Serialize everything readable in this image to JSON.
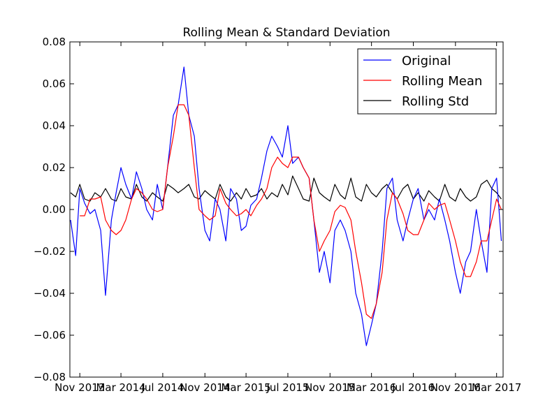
{
  "chart_data": {
    "type": "line",
    "title": "Rolling Mean & Standard Deviation",
    "xlabel": "",
    "ylabel": "",
    "x_range": [
      "2013-10-03",
      "2017-03-20"
    ],
    "ylim": [
      -0.08,
      0.08
    ],
    "yticks": [
      0.08,
      0.06,
      0.04,
      0.02,
      0.0,
      -0.02,
      -0.04,
      -0.06,
      -0.08
    ],
    "ytick_labels": [
      "0.08",
      "0.06",
      "0.04",
      "0.02",
      "0.00",
      "−0.02",
      "−0.04",
      "−0.06",
      "−0.08"
    ],
    "xticks": [
      "2013-11-01",
      "2014-03-01",
      "2014-07-01",
      "2014-11-01",
      "2015-03-01",
      "2015-07-01",
      "2015-11-01",
      "2016-03-01",
      "2016-07-01",
      "2016-11-01",
      "2017-03-01"
    ],
    "xtick_labels": [
      "Nov 2013",
      "Mar 2014",
      "Jul 2014",
      "Nov 2014",
      "Mar 2015",
      "Jul 2015",
      "Nov 2015",
      "Mar 2016",
      "Jul 2016",
      "Nov 2016",
      "Mar 2017"
    ],
    "legend_position": "top-right",
    "grid": false,
    "series": [
      {
        "name": "Original",
        "color": "#0000ff",
        "x": [
          "2013-10-05",
          "2013-10-20",
          "2013-11-01",
          "2013-11-15",
          "2013-12-01",
          "2013-12-15",
          "2014-01-01",
          "2014-01-15",
          "2014-02-01",
          "2014-02-15",
          "2014-03-01",
          "2014-03-15",
          "2014-04-01",
          "2014-04-15",
          "2014-05-01",
          "2014-05-15",
          "2014-06-01",
          "2014-06-15",
          "2014-07-01",
          "2014-07-15",
          "2014-08-01",
          "2014-08-15",
          "2014-09-01",
          "2014-09-15",
          "2014-10-01",
          "2014-10-15",
          "2014-11-01",
          "2014-11-15",
          "2014-12-01",
          "2014-12-15",
          "2015-01-01",
          "2015-01-15",
          "2015-02-01",
          "2015-02-15",
          "2015-03-01",
          "2015-03-15",
          "2015-04-01",
          "2015-04-15",
          "2015-05-01",
          "2015-05-15",
          "2015-06-01",
          "2015-06-15",
          "2015-07-01",
          "2015-07-15",
          "2015-08-01",
          "2015-08-15",
          "2015-09-01",
          "2015-09-15",
          "2015-10-01",
          "2015-10-15",
          "2015-11-01",
          "2015-11-15",
          "2015-12-01",
          "2015-12-15",
          "2016-01-01",
          "2016-01-15",
          "2016-02-01",
          "2016-02-15",
          "2016-03-01",
          "2016-03-15",
          "2016-04-01",
          "2016-04-15",
          "2016-05-01",
          "2016-05-15",
          "2016-06-01",
          "2016-06-15",
          "2016-07-01",
          "2016-07-15",
          "2016-08-01",
          "2016-08-15",
          "2016-09-01",
          "2016-09-15",
          "2016-10-01",
          "2016-10-15",
          "2016-11-01",
          "2016-11-15",
          "2016-12-01",
          "2016-12-15",
          "2017-01-01",
          "2017-01-15",
          "2017-02-01",
          "2017-02-15",
          "2017-03-01",
          "2017-03-15"
        ],
        "y": [
          -0.005,
          -0.022,
          0.01,
          0.003,
          -0.002,
          0.0,
          -0.01,
          -0.041,
          -0.005,
          0.008,
          0.02,
          0.012,
          0.005,
          0.018,
          0.01,
          0.0,
          -0.005,
          0.012,
          0.0,
          0.02,
          0.045,
          0.05,
          0.068,
          0.045,
          0.035,
          0.01,
          -0.01,
          -0.015,
          0.005,
          0.0,
          -0.015,
          0.01,
          0.005,
          -0.01,
          -0.008,
          0.002,
          0.005,
          0.015,
          0.028,
          0.035,
          0.03,
          0.025,
          0.04,
          0.022,
          0.025,
          0.02,
          0.015,
          -0.005,
          -0.03,
          -0.02,
          -0.035,
          -0.01,
          -0.005,
          -0.01,
          -0.02,
          -0.04,
          -0.05,
          -0.065,
          -0.055,
          -0.045,
          -0.02,
          0.01,
          0.015,
          -0.005,
          -0.015,
          -0.005,
          0.005,
          0.01,
          -0.005,
          0.0,
          -0.005,
          0.005,
          -0.005,
          -0.015,
          -0.03,
          -0.04,
          -0.025,
          -0.02,
          0.0,
          -0.015,
          -0.03,
          0.01,
          0.015,
          -0.015
        ]
      },
      {
        "name": "Rolling Mean",
        "color": "#ff0000",
        "x": [
          "2013-11-01",
          "2013-11-15",
          "2013-12-01",
          "2013-12-15",
          "2014-01-01",
          "2014-01-15",
          "2014-02-01",
          "2014-02-15",
          "2014-03-01",
          "2014-03-15",
          "2014-04-01",
          "2014-04-15",
          "2014-05-01",
          "2014-05-15",
          "2014-06-01",
          "2014-06-15",
          "2014-07-01",
          "2014-07-15",
          "2014-08-01",
          "2014-08-15",
          "2014-09-01",
          "2014-09-15",
          "2014-10-01",
          "2014-10-15",
          "2014-11-01",
          "2014-11-15",
          "2014-12-01",
          "2014-12-15",
          "2015-01-01",
          "2015-01-15",
          "2015-02-01",
          "2015-02-15",
          "2015-03-01",
          "2015-03-15",
          "2015-04-01",
          "2015-04-15",
          "2015-05-01",
          "2015-05-15",
          "2015-06-01",
          "2015-06-15",
          "2015-07-01",
          "2015-07-15",
          "2015-08-01",
          "2015-08-15",
          "2015-09-01",
          "2015-09-15",
          "2015-10-01",
          "2015-10-15",
          "2015-11-01",
          "2015-11-15",
          "2015-12-01",
          "2015-12-15",
          "2016-01-01",
          "2016-01-15",
          "2016-02-01",
          "2016-02-15",
          "2016-03-01",
          "2016-03-15",
          "2016-04-01",
          "2016-04-15",
          "2016-05-01",
          "2016-05-15",
          "2016-06-01",
          "2016-06-15",
          "2016-07-01",
          "2016-07-15",
          "2016-08-01",
          "2016-08-15",
          "2016-09-01",
          "2016-09-15",
          "2016-10-01",
          "2016-10-15",
          "2016-11-01",
          "2016-11-15",
          "2016-12-01",
          "2016-12-15",
          "2017-01-01",
          "2017-01-15",
          "2017-02-01",
          "2017-02-15",
          "2017-03-01",
          "2017-03-15"
        ],
        "y": [
          -0.003,
          -0.003,
          0.005,
          0.005,
          0.006,
          -0.005,
          -0.01,
          -0.012,
          -0.01,
          -0.005,
          0.005,
          0.01,
          0.008,
          0.005,
          0.0,
          -0.001,
          0.0,
          0.02,
          0.035,
          0.05,
          0.05,
          0.045,
          0.02,
          0.0,
          -0.003,
          -0.005,
          -0.003,
          0.01,
          0.003,
          0.0,
          -0.003,
          -0.002,
          0.0,
          -0.003,
          0.002,
          0.005,
          0.01,
          0.02,
          0.025,
          0.022,
          0.02,
          0.025,
          0.025,
          0.02,
          0.015,
          -0.005,
          -0.02,
          -0.015,
          -0.01,
          -0.001,
          0.002,
          0.001,
          -0.005,
          -0.02,
          -0.035,
          -0.05,
          -0.052,
          -0.045,
          -0.03,
          -0.005,
          0.008,
          0.005,
          -0.002,
          -0.01,
          -0.012,
          -0.012,
          -0.005,
          0.003,
          0.0,
          0.002,
          0.003,
          -0.005,
          -0.015,
          -0.025,
          -0.032,
          -0.032,
          -0.025,
          -0.015,
          -0.015,
          -0.005,
          0.005,
          0.0
        ]
      },
      {
        "name": "Rolling Std",
        "color": "#000000",
        "x": [
          "2013-10-05",
          "2013-10-20",
          "2013-11-01",
          "2013-11-15",
          "2013-12-01",
          "2013-12-15",
          "2014-01-01",
          "2014-01-15",
          "2014-02-01",
          "2014-02-15",
          "2014-03-01",
          "2014-03-15",
          "2014-04-01",
          "2014-04-15",
          "2014-05-01",
          "2014-05-15",
          "2014-06-01",
          "2014-06-15",
          "2014-07-01",
          "2014-07-15",
          "2014-08-01",
          "2014-08-15",
          "2014-09-01",
          "2014-09-15",
          "2014-10-01",
          "2014-10-15",
          "2014-11-01",
          "2014-11-15",
          "2014-12-01",
          "2014-12-15",
          "2015-01-01",
          "2015-01-15",
          "2015-02-01",
          "2015-02-15",
          "2015-03-01",
          "2015-03-15",
          "2015-04-01",
          "2015-04-15",
          "2015-05-01",
          "2015-05-15",
          "2015-06-01",
          "2015-06-15",
          "2015-07-01",
          "2015-07-15",
          "2015-08-01",
          "2015-08-15",
          "2015-09-01",
          "2015-09-15",
          "2015-10-01",
          "2015-10-15",
          "2015-11-01",
          "2015-11-15",
          "2015-12-01",
          "2015-12-15",
          "2016-01-01",
          "2016-01-15",
          "2016-02-01",
          "2016-02-15",
          "2016-03-01",
          "2016-03-15",
          "2016-04-01",
          "2016-04-15",
          "2016-05-01",
          "2016-05-15",
          "2016-06-01",
          "2016-06-15",
          "2016-07-01",
          "2016-07-15",
          "2016-08-01",
          "2016-08-15",
          "2016-09-01",
          "2016-09-15",
          "2016-10-01",
          "2016-10-15",
          "2016-11-01",
          "2016-11-15",
          "2016-12-01",
          "2016-12-15",
          "2017-01-01",
          "2017-01-15",
          "2017-02-01",
          "2017-02-15",
          "2017-03-01",
          "2017-03-15"
        ],
        "y": [
          0.008,
          0.006,
          0.012,
          0.005,
          0.004,
          0.008,
          0.006,
          0.01,
          0.005,
          0.004,
          0.01,
          0.006,
          0.005,
          0.012,
          0.006,
          0.004,
          0.008,
          0.006,
          0.004,
          0.012,
          0.01,
          0.008,
          0.01,
          0.012,
          0.006,
          0.005,
          0.009,
          0.007,
          0.005,
          0.012,
          0.006,
          0.004,
          0.008,
          0.005,
          0.01,
          0.006,
          0.007,
          0.01,
          0.005,
          0.008,
          0.006,
          0.012,
          0.007,
          0.016,
          0.01,
          0.005,
          0.004,
          0.015,
          0.008,
          0.006,
          0.004,
          0.012,
          0.007,
          0.005,
          0.015,
          0.006,
          0.004,
          0.012,
          0.008,
          0.006,
          0.01,
          0.012,
          0.008,
          0.005,
          0.01,
          0.012,
          0.005,
          0.008,
          0.004,
          0.009,
          0.006,
          0.004,
          0.012,
          0.006,
          0.004,
          0.01,
          0.006,
          0.004,
          0.006,
          0.012,
          0.014,
          0.01,
          0.008,
          0.005
        ]
      }
    ]
  }
}
